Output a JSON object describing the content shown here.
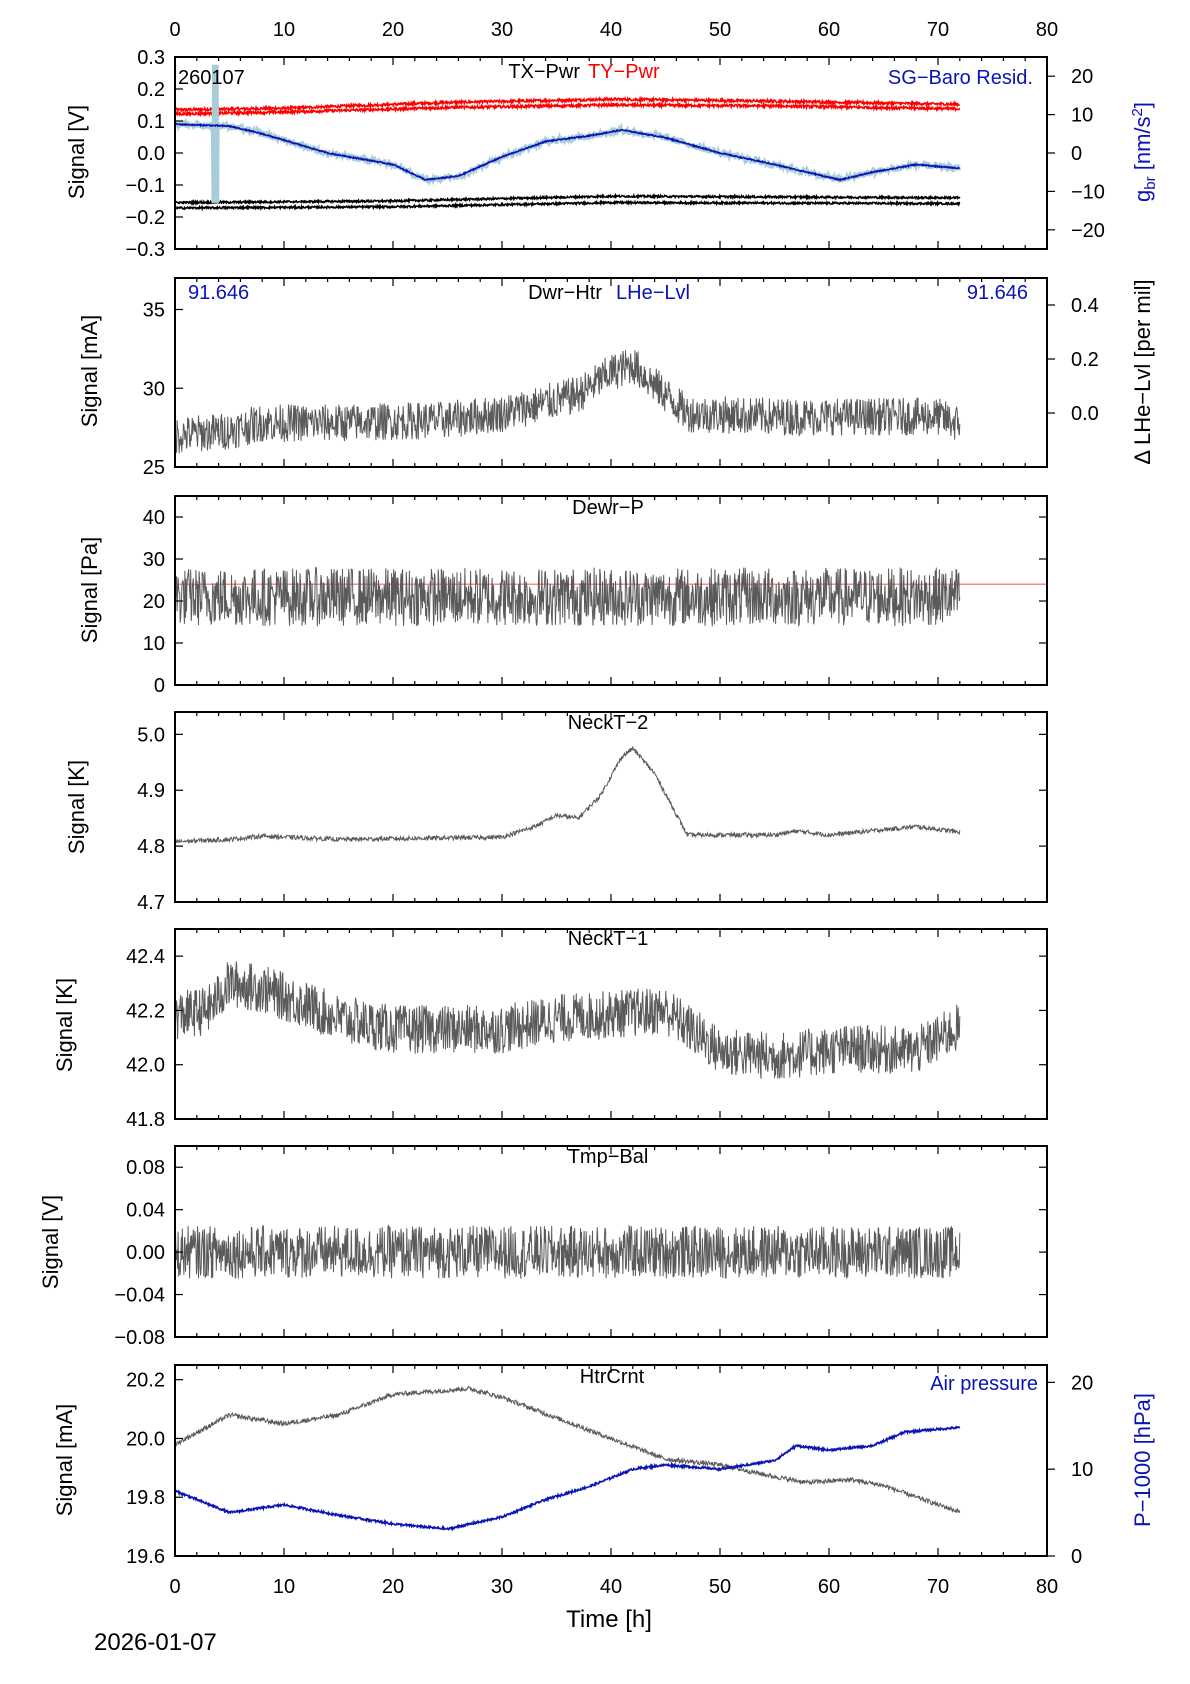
{
  "figure": {
    "date_label": "2026-01-07",
    "xlabel": "Time [h]",
    "xlim": [
      0,
      80
    ],
    "xticks": [
      0,
      10,
      20,
      30,
      40,
      50,
      60,
      70,
      80
    ],
    "colors": {
      "data": "#5a5a5a",
      "red": "#ff0000",
      "blue": "#0a14b4",
      "lightblue": "#a8ccd8",
      "black": "#000000",
      "refline": "#ff6060"
    }
  },
  "chart_data": [
    {
      "id": "p1",
      "type": "line",
      "title": "TX−Pwr",
      "title2": "TY−Pwr",
      "corner_label": "260107",
      "right_label": "SG−Baro Resid.",
      "ylabel": "Signal [V]",
      "ylim": [
        -0.3,
        0.3
      ],
      "yticks": [
        "0.3",
        "0.2",
        "0.1",
        "0.0",
        "−0.1",
        "−0.2",
        "−0.3"
      ],
      "y2label": "g_br [nm/s^2]",
      "y2lim": [
        -25,
        25
      ],
      "y2ticks": [
        "20",
        "10",
        "0",
        "−10",
        "−20"
      ],
      "series": [
        {
          "name": "TY-Pwr upper",
          "color": "red",
          "keys": [
            [
              0,
              0.135
            ],
            [
              10,
              0.14
            ],
            [
              25,
              0.158
            ],
            [
              40,
              0.168
            ],
            [
              55,
              0.162
            ],
            [
              72,
              0.152
            ]
          ],
          "noise": 0.004
        },
        {
          "name": "TY-Pwr lower",
          "color": "red",
          "keys": [
            [
              0,
              0.122
            ],
            [
              10,
              0.128
            ],
            [
              25,
              0.142
            ],
            [
              40,
              0.15
            ],
            [
              55,
              0.147
            ],
            [
              72,
              0.138
            ]
          ],
          "noise": 0.004
        },
        {
          "name": "TX-Pwr upper",
          "color": "black",
          "keys": [
            [
              0,
              -0.155
            ],
            [
              20,
              -0.15
            ],
            [
              40,
              -0.135
            ],
            [
              72,
              -0.14
            ]
          ],
          "noise": 0.003
        },
        {
          "name": "TX-Pwr lower",
          "color": "black",
          "keys": [
            [
              0,
              -0.172
            ],
            [
              20,
              -0.168
            ],
            [
              40,
              -0.155
            ],
            [
              72,
              -0.158
            ]
          ],
          "noise": 0.003
        },
        {
          "name": "SG-Baro Resid. raw",
          "color": "lightblue",
          "axis": "right",
          "keys": [
            [
              0,
              7.5
            ],
            [
              5,
              7
            ],
            [
              8,
              5
            ],
            [
              14,
              0
            ],
            [
              20,
              -3
            ],
            [
              23,
              -7
            ],
            [
              26,
              -6
            ],
            [
              30,
              -1
            ],
            [
              34,
              3
            ],
            [
              38,
              4.5
            ],
            [
              41,
              6
            ],
            [
              45,
              4
            ],
            [
              50,
              0
            ],
            [
              55,
              -3
            ],
            [
              61,
              -7
            ],
            [
              64,
              -5
            ],
            [
              68,
              -3
            ],
            [
              72,
              -4
            ]
          ],
          "noise": 0.9,
          "spike": {
            "x": 3.7,
            "up": 23,
            "down": -13
          }
        },
        {
          "name": "SG-Baro Resid.",
          "color": "blue",
          "axis": "right",
          "keys": [
            [
              0,
              7.5
            ],
            [
              5,
              7
            ],
            [
              8,
              5
            ],
            [
              14,
              0
            ],
            [
              20,
              -3
            ],
            [
              23,
              -7
            ],
            [
              26,
              -6
            ],
            [
              30,
              -1
            ],
            [
              34,
              3
            ],
            [
              38,
              4.5
            ],
            [
              41,
              6
            ],
            [
              45,
              4
            ],
            [
              50,
              0
            ],
            [
              55,
              -3
            ],
            [
              61,
              -7
            ],
            [
              64,
              -5
            ],
            [
              68,
              -3
            ],
            [
              72,
              -4
            ]
          ],
          "noise": 0.15
        }
      ]
    },
    {
      "id": "p2",
      "type": "line",
      "title": "Dwr−Htr",
      "title2": "LHe−Lvl",
      "left_value": "91.646",
      "right_value": "91.646",
      "ylabel": "Signal [mA]",
      "ylim": [
        25,
        37
      ],
      "yticks": [
        "35",
        "30",
        "25"
      ],
      "y2label": "Δ LHe−Lvl [per mil]",
      "y2lim": [
        -0.2,
        0.5
      ],
      "y2ticks": [
        "0.4",
        "0.2",
        "0.0"
      ],
      "series": [
        {
          "name": "Dwr-Htr",
          "color": "data",
          "keys": [
            [
              0,
              27
            ],
            [
              5,
              27.3
            ],
            [
              8,
              27.8
            ],
            [
              15,
              27.8
            ],
            [
              25,
              28
            ],
            [
              30,
              28.4
            ],
            [
              33,
              28.9
            ],
            [
              37,
              29.6
            ],
            [
              40,
              31
            ],
            [
              42,
              31.5
            ],
            [
              44,
              30.2
            ],
            [
              47,
              28.4
            ],
            [
              55,
              28.2
            ],
            [
              62,
              28.2
            ],
            [
              70,
              28.2
            ],
            [
              72,
              27.7
            ]
          ],
          "noise": 1.2
        }
      ]
    },
    {
      "id": "p3",
      "type": "line",
      "title": "Dewr−P",
      "ylabel": "Signal [Pa]",
      "ylim": [
        0,
        45
      ],
      "yticks": [
        "40",
        "30",
        "20",
        "10",
        "0"
      ],
      "reference_value": 24,
      "series": [
        {
          "name": "Dewr-P",
          "color": "data",
          "keys": [
            [
              0,
              21
            ],
            [
              72,
              21
            ]
          ],
          "noise": 7
        }
      ]
    },
    {
      "id": "p4",
      "type": "line",
      "title": "NeckT−2",
      "ylabel": "Signal [K]",
      "ylim": [
        4.7,
        5.04
      ],
      "yticks": [
        "5.0",
        "4.9",
        "4.8",
        "4.7"
      ],
      "series": [
        {
          "name": "NeckT-2",
          "color": "data",
          "keys": [
            [
              0,
              4.808
            ],
            [
              5,
              4.812
            ],
            [
              8,
              4.818
            ],
            [
              15,
              4.812
            ],
            [
              30,
              4.816
            ],
            [
              33,
              4.835
            ],
            [
              35,
              4.855
            ],
            [
              37,
              4.85
            ],
            [
              39,
              4.89
            ],
            [
              41,
              4.96
            ],
            [
              42,
              4.975
            ],
            [
              44,
              4.93
            ],
            [
              47,
              4.82
            ],
            [
              55,
              4.82
            ],
            [
              57,
              4.827
            ],
            [
              60,
              4.82
            ],
            [
              68,
              4.835
            ],
            [
              72,
              4.825
            ]
          ],
          "noise": 0.004
        }
      ]
    },
    {
      "id": "p5",
      "type": "line",
      "title": "NeckT−1",
      "ylabel": "Signal [K]",
      "ylim": [
        41.8,
        42.5
      ],
      "yticks": [
        "42.4",
        "42.2",
        "42.0",
        "41.8"
      ],
      "series": [
        {
          "name": "NeckT-1",
          "color": "data",
          "keys": [
            [
              0,
              42.18
            ],
            [
              3,
              42.2
            ],
            [
              5,
              42.3
            ],
            [
              8,
              42.28
            ],
            [
              12,
              42.22
            ],
            [
              15,
              42.17
            ],
            [
              20,
              42.13
            ],
            [
              30,
              42.13
            ],
            [
              35,
              42.17
            ],
            [
              45,
              42.2
            ],
            [
              50,
              42.05
            ],
            [
              55,
              42.03
            ],
            [
              62,
              42.06
            ],
            [
              68,
              42.05
            ],
            [
              72,
              42.14
            ]
          ],
          "noise": 0.09
        }
      ]
    },
    {
      "id": "p6",
      "type": "line",
      "title": "Tmp−Bal",
      "ylabel": "Signal [V]",
      "ylim": [
        -0.08,
        0.1
      ],
      "yticks": [
        "0.08",
        "0.04",
        "0.00",
        "−0.04",
        "−0.08"
      ],
      "series": [
        {
          "name": "Tmp-Bal",
          "color": "data",
          "keys": [
            [
              0,
              0
            ],
            [
              72,
              0
            ]
          ],
          "noise": 0.025
        }
      ]
    },
    {
      "id": "p7",
      "type": "line",
      "title": "HtrCrnt",
      "right_label": "Air pressure",
      "ylabel": "Signal [mA]",
      "ylim": [
        19.6,
        20.25
      ],
      "yticks": [
        "20.2",
        "20.0",
        "19.8",
        "19.6"
      ],
      "y2label": "P−1000 [hPa]",
      "y2lim": [
        0,
        22
      ],
      "y2ticks": [
        "20",
        "10",
        "0"
      ],
      "series": [
        {
          "name": "HtrCrnt",
          "color": "data",
          "keys": [
            [
              0,
              19.98
            ],
            [
              5,
              20.08
            ],
            [
              10,
              20.05
            ],
            [
              15,
              20.08
            ],
            [
              20,
              20.15
            ],
            [
              27,
              20.17
            ],
            [
              30,
              20.14
            ],
            [
              35,
              20.07
            ],
            [
              40,
              20.0
            ],
            [
              45,
              19.93
            ],
            [
              50,
              19.91
            ],
            [
              55,
              19.87
            ],
            [
              58,
              19.85
            ],
            [
              62,
              19.86
            ],
            [
              65,
              19.84
            ],
            [
              68,
              19.8
            ],
            [
              72,
              19.75
            ]
          ],
          "noise": 0.008
        },
        {
          "name": "Air pressure",
          "color": "blue",
          "axis": "right",
          "keys": [
            [
              0,
              7.5
            ],
            [
              5,
              5
            ],
            [
              10,
              5.9
            ],
            [
              15,
              4.7
            ],
            [
              20,
              3.7
            ],
            [
              25,
              3.1
            ],
            [
              30,
              4.5
            ],
            [
              34,
              6.5
            ],
            [
              38,
              8
            ],
            [
              42,
              10
            ],
            [
              45,
              10.5
            ],
            [
              50,
              10
            ],
            [
              55,
              11
            ],
            [
              57,
              12.7
            ],
            [
              60,
              12.2
            ],
            [
              64,
              12.7
            ],
            [
              67,
              14.3
            ],
            [
              72,
              14.8
            ]
          ],
          "noise": 0.12
        }
      ]
    }
  ]
}
